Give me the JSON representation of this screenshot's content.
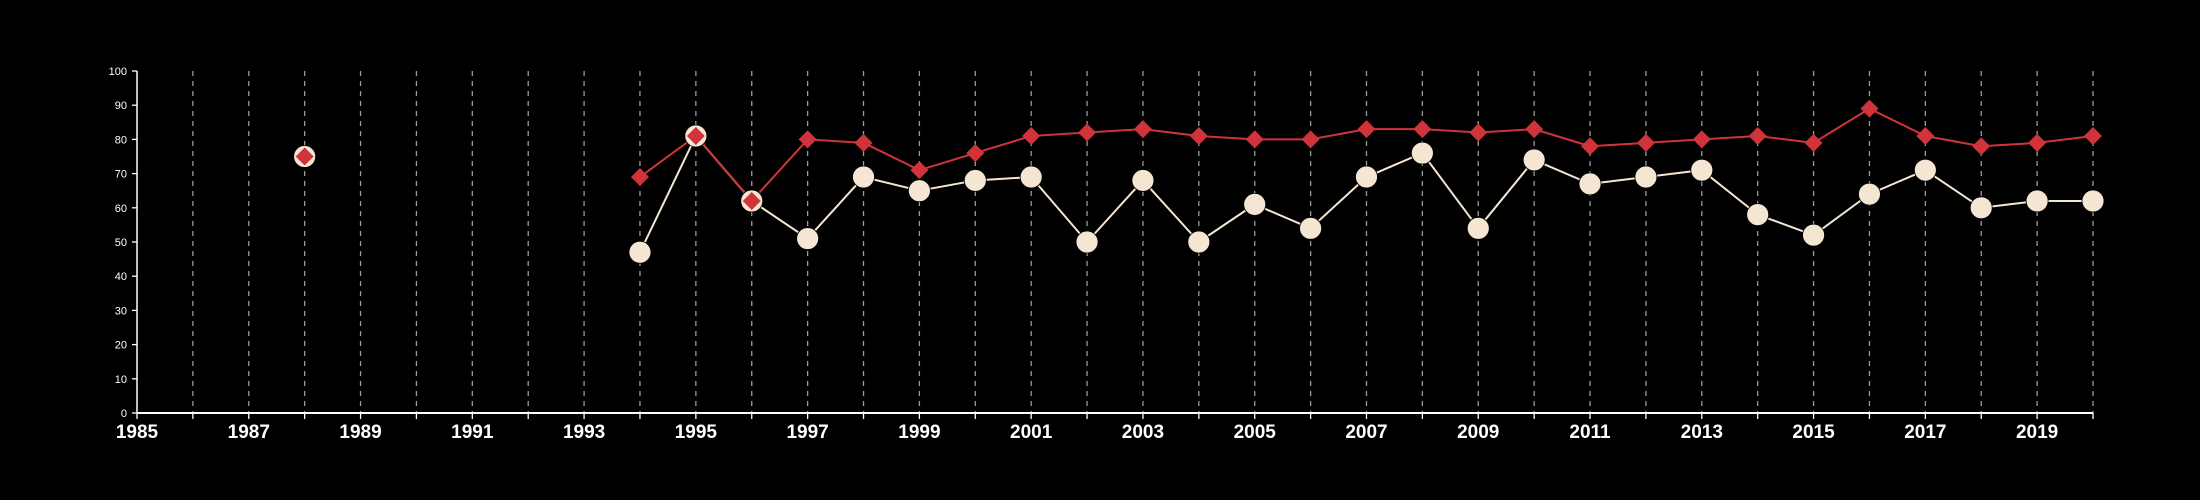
{
  "chart_data": {
    "type": "line",
    "title": "",
    "xlabel": "",
    "ylabel": "",
    "xlim": [
      1985,
      2020
    ],
    "ylim": [
      0,
      100
    ],
    "x_ticks": [
      "1985",
      "1987",
      "1989",
      "1991",
      "1993",
      "1995",
      "1997",
      "1999",
      "2001",
      "2003",
      "2005",
      "2007",
      "2009",
      "2011",
      "2013",
      "2015",
      "2017",
      "2019"
    ],
    "y_ticks": [
      "0",
      "10",
      "20",
      "30",
      "40",
      "50",
      "60",
      "70",
      "80",
      "90",
      "100"
    ],
    "grid": "vertical dashed lines at every year",
    "background": "#000000",
    "series": [
      {
        "marker": "circle",
        "color": "#f5e6d3",
        "points": [
          {
            "x": 1988,
            "y": 75
          },
          {
            "x": 1994,
            "y": 47
          },
          {
            "x": 1995,
            "y": 81
          },
          {
            "x": 1996,
            "y": 62
          },
          {
            "x": 1997,
            "y": 51
          },
          {
            "x": 1998,
            "y": 69
          },
          {
            "x": 1999,
            "y": 65
          },
          {
            "x": 2000,
            "y": 68
          },
          {
            "x": 2001,
            "y": 69
          },
          {
            "x": 2002,
            "y": 50
          },
          {
            "x": 2003,
            "y": 68
          },
          {
            "x": 2004,
            "y": 50
          },
          {
            "x": 2005,
            "y": 61
          },
          {
            "x": 2006,
            "y": 54
          },
          {
            "x": 2007,
            "y": 69
          },
          {
            "x": 2008,
            "y": 76
          },
          {
            "x": 2009,
            "y": 54
          },
          {
            "x": 2010,
            "y": 74
          },
          {
            "x": 2011,
            "y": 67
          },
          {
            "x": 2012,
            "y": 69
          },
          {
            "x": 2013,
            "y": 71
          },
          {
            "x": 2014,
            "y": 58
          },
          {
            "x": 2015,
            "y": 52
          },
          {
            "x": 2016,
            "y": 64
          },
          {
            "x": 2017,
            "y": 71
          },
          {
            "x": 2018,
            "y": 60
          },
          {
            "x": 2019,
            "y": 62
          },
          {
            "x": 2020,
            "y": 62
          }
        ]
      },
      {
        "marker": "diamond",
        "color": "#d0343a",
        "points": [
          {
            "x": 1988,
            "y": 75
          },
          {
            "x": 1994,
            "y": 69
          },
          {
            "x": 1995,
            "y": 81
          },
          {
            "x": 1996,
            "y": 62
          },
          {
            "x": 1997,
            "y": 80
          },
          {
            "x": 1998,
            "y": 79
          },
          {
            "x": 1999,
            "y": 71
          },
          {
            "x": 2000,
            "y": 76
          },
          {
            "x": 2001,
            "y": 81
          },
          {
            "x": 2002,
            "y": 82
          },
          {
            "x": 2003,
            "y": 83
          },
          {
            "x": 2004,
            "y": 81
          },
          {
            "x": 2005,
            "y": 80
          },
          {
            "x": 2006,
            "y": 80
          },
          {
            "x": 2007,
            "y": 83
          },
          {
            "x": 2008,
            "y": 83
          },
          {
            "x": 2009,
            "y": 82
          },
          {
            "x": 2010,
            "y": 83
          },
          {
            "x": 2011,
            "y": 78
          },
          {
            "x": 2012,
            "y": 79
          },
          {
            "x": 2013,
            "y": 80
          },
          {
            "x": 2014,
            "y": 81
          },
          {
            "x": 2015,
            "y": 79
          },
          {
            "x": 2016,
            "y": 89
          },
          {
            "x": 2017,
            "y": 81
          },
          {
            "x": 2018,
            "y": 78
          },
          {
            "x": 2019,
            "y": 79
          },
          {
            "x": 2020,
            "y": 81
          }
        ]
      }
    ]
  }
}
